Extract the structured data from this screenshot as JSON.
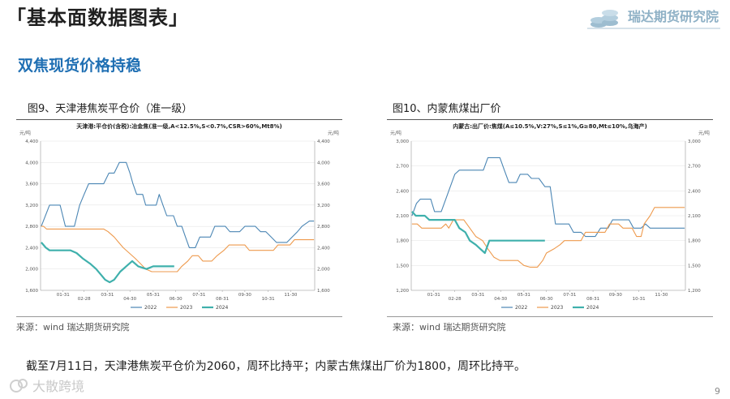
{
  "header": {
    "title": "「基本面数据图表」",
    "logo_text": "瑞达期货研究院"
  },
  "section_title": "双焦现货价格持稳",
  "figures": [
    {
      "caption": "图9、天津港焦炭平仓价（准一级）",
      "source": "来源：wind   瑞达期货研究院"
    },
    {
      "caption": "图10、内蒙焦煤出厂价",
      "source": "来源：wind   瑞达期货研究院"
    }
  ],
  "summary": "截至7月11日，天津港焦炭平仓价为2060，周环比持平；内蒙古焦煤出厂价为1800，周环比持平。",
  "watermark": "大散跨境",
  "page_number": "9",
  "colors": {
    "s2022": "#4b86b4",
    "s2023": "#ee9a4d",
    "s2024": "#3fb0ac",
    "section": "#1f6fb3"
  },
  "chart_data": [
    {
      "type": "line",
      "title": "天津港:平仓价(含税):冶金焦(准一级,A<12.5%,S<0.7%,CSR>60%,Mt8%)",
      "ylabel_left": "元/吨",
      "ylabel_right": "元/吨",
      "ylim": [
        1600,
        4400
      ],
      "yticks": [
        "1,600",
        "2,000",
        "2,400",
        "2,800",
        "3,200",
        "3,600",
        "4,000",
        "4,400"
      ],
      "x_ticks": [
        "01-31",
        "02-28",
        "03-31",
        "04-30",
        "05-31",
        "06-30",
        "07-31",
        "08-31",
        "09-30",
        "10-31",
        "11-30"
      ],
      "x_range_days": [
        0,
        365
      ],
      "legend": "bottom",
      "grid": true,
      "series": [
        {
          "name": "2022",
          "color": "#4b86b4",
          "points": [
            [
              1,
              2800
            ],
            [
              12,
              3200
            ],
            [
              26,
              3200
            ],
            [
              33,
              2800
            ],
            [
              45,
              2800
            ],
            [
              52,
              3200
            ],
            [
              58,
              3400
            ],
            [
              64,
              3600
            ],
            [
              84,
              3600
            ],
            [
              91,
              3800
            ],
            [
              98,
              3800
            ],
            [
              105,
              4000
            ],
            [
              114,
              4000
            ],
            [
              119,
              3800
            ],
            [
              123,
              3600
            ],
            [
              128,
              3400
            ],
            [
              136,
              3400
            ],
            [
              140,
              3200
            ],
            [
              154,
              3200
            ],
            [
              158,
              3400
            ],
            [
              163,
              3200
            ],
            [
              168,
              3000
            ],
            [
              177,
              3000
            ],
            [
              182,
              2800
            ],
            [
              188,
              2800
            ],
            [
              193,
              2600
            ],
            [
              198,
              2400
            ],
            [
              206,
              2400
            ],
            [
              212,
              2600
            ],
            [
              226,
              2600
            ],
            [
              232,
              2800
            ],
            [
              246,
              2800
            ],
            [
              252,
              2700
            ],
            [
              265,
              2700
            ],
            [
              272,
              2800
            ],
            [
              286,
              2800
            ],
            [
              293,
              2700
            ],
            [
              300,
              2700
            ],
            [
              307,
              2600
            ],
            [
              314,
              2500
            ],
            [
              328,
              2500
            ],
            [
              335,
              2600
            ],
            [
              342,
              2700
            ],
            [
              348,
              2800
            ],
            [
              358,
              2900
            ],
            [
              364,
              2900
            ]
          ]
        },
        {
          "name": "2023",
          "color": "#ee9a4d",
          "points": [
            [
              1,
              2800
            ],
            [
              4,
              2800
            ],
            [
              8,
              2750
            ],
            [
              84,
              2750
            ],
            [
              90,
              2700
            ],
            [
              98,
              2600
            ],
            [
              104,
              2500
            ],
            [
              110,
              2400
            ],
            [
              118,
              2300
            ],
            [
              126,
              2200
            ],
            [
              133,
              2100
            ],
            [
              140,
              2000
            ],
            [
              148,
              1950
            ],
            [
              182,
              1950
            ],
            [
              188,
              2050
            ],
            [
              196,
              2150
            ],
            [
              202,
              2250
            ],
            [
              210,
              2250
            ],
            [
              216,
              2150
            ],
            [
              228,
              2150
            ],
            [
              235,
              2250
            ],
            [
              244,
              2350
            ],
            [
              251,
              2450
            ],
            [
              272,
              2450
            ],
            [
              278,
              2350
            ],
            [
              310,
              2350
            ],
            [
              316,
              2450
            ],
            [
              332,
              2450
            ],
            [
              338,
              2550
            ],
            [
              364,
              2550
            ]
          ]
        },
        {
          "name": "2024",
          "color": "#3fb0ac",
          "points": [
            [
              1,
              2500
            ],
            [
              7,
              2400
            ],
            [
              12,
              2350
            ],
            [
              40,
              2350
            ],
            [
              48,
              2300
            ],
            [
              56,
              2200
            ],
            [
              66,
              2100
            ],
            [
              74,
              2000
            ],
            [
              80,
              1900
            ],
            [
              86,
              1800
            ],
            [
              92,
              1750
            ],
            [
              98,
              1800
            ],
            [
              106,
              1950
            ],
            [
              114,
              2050
            ],
            [
              122,
              2150
            ],
            [
              130,
              2050
            ],
            [
              141,
              2000
            ],
            [
              150,
              2050
            ],
            [
              178,
              2050
            ]
          ]
        }
      ]
    },
    {
      "type": "line",
      "title": "内蒙古:出厂价:焦煤(A≤10.5%,V:27%,S≤1%,G≥80,Mt≤10%,乌海产)",
      "ylabel_left": "元/吨",
      "ylabel_right": "元/吨",
      "ylim": [
        1200,
        3000
      ],
      "yticks": [
        "1,200",
        "1,500",
        "1,800",
        "2,100",
        "2,400",
        "2,700",
        "3,000"
      ],
      "x_ticks": [
        "01-31",
        "02-28",
        "03-31",
        "04-30",
        "05-31",
        "06-30",
        "07-31",
        "08-31",
        "09-30",
        "10-31",
        "11-30"
      ],
      "x_range_days": [
        0,
        365
      ],
      "legend": "bottom",
      "grid": true,
      "series": [
        {
          "name": "2022",
          "color": "#4b86b4",
          "points": [
            [
              1,
              2100
            ],
            [
              7,
              2250
            ],
            [
              12,
              2300
            ],
            [
              26,
              2300
            ],
            [
              31,
              2150
            ],
            [
              40,
              2150
            ],
            [
              46,
              2300
            ],
            [
              50,
              2400
            ],
            [
              58,
              2600
            ],
            [
              64,
              2650
            ],
            [
              90,
              2650
            ],
            [
              96,
              2650
            ],
            [
              102,
              2800
            ],
            [
              118,
              2800
            ],
            [
              124,
              2650
            ],
            [
              130,
              2500
            ],
            [
              140,
              2500
            ],
            [
              145,
              2600
            ],
            [
              155,
              2600
            ],
            [
              160,
              2550
            ],
            [
              170,
              2550
            ],
            [
              178,
              2450
            ],
            [
              185,
              2450
            ],
            [
              192,
              2000
            ],
            [
              210,
              2000
            ],
            [
              216,
              1900
            ],
            [
              226,
              1900
            ],
            [
              232,
              1850
            ],
            [
              245,
              1850
            ],
            [
              252,
              1950
            ],
            [
              262,
              1950
            ],
            [
              268,
              2050
            ],
            [
              290,
              2050
            ],
            [
              296,
              1950
            ],
            [
              306,
              1950
            ],
            [
              312,
              2000
            ],
            [
              318,
              1950
            ],
            [
              364,
              1950
            ]
          ]
        },
        {
          "name": "2023",
          "color": "#ee9a4d",
          "points": [
            [
              1,
              2000
            ],
            [
              8,
              2000
            ],
            [
              14,
              1950
            ],
            [
              40,
              1950
            ],
            [
              46,
              2000
            ],
            [
              50,
              1950
            ],
            [
              56,
              2050
            ],
            [
              70,
              2050
            ],
            [
              78,
              1950
            ],
            [
              86,
              1850
            ],
            [
              95,
              1800
            ],
            [
              102,
              1700
            ],
            [
              110,
              1600
            ],
            [
              118,
              1560
            ],
            [
              142,
              1560
            ],
            [
              150,
              1500
            ],
            [
              158,
              1480
            ],
            [
              168,
              1480
            ],
            [
              175,
              1560
            ],
            [
              180,
              1650
            ],
            [
              190,
              1700
            ],
            [
              198,
              1750
            ],
            [
              204,
              1800
            ],
            [
              226,
              1800
            ],
            [
              232,
              1900
            ],
            [
              258,
              1900
            ],
            [
              264,
              2000
            ],
            [
              276,
              2000
            ],
            [
              282,
              1950
            ],
            [
              294,
              1950
            ],
            [
              300,
              1850
            ],
            [
              306,
              1850
            ],
            [
              310,
              2000
            ],
            [
              318,
              2100
            ],
            [
              324,
              2200
            ],
            [
              364,
              2200
            ]
          ]
        },
        {
          "name": "2024",
          "color": "#3fb0ac",
          "points": [
            [
              1,
              2150
            ],
            [
              6,
              2100
            ],
            [
              18,
              2100
            ],
            [
              24,
              2050
            ],
            [
              58,
              2050
            ],
            [
              64,
              1950
            ],
            [
              72,
              1900
            ],
            [
              78,
              1800
            ],
            [
              86,
              1750
            ],
            [
              92,
              1700
            ],
            [
              98,
              1650
            ],
            [
              104,
              1800
            ],
            [
              178,
              1800
            ]
          ]
        }
      ]
    }
  ]
}
